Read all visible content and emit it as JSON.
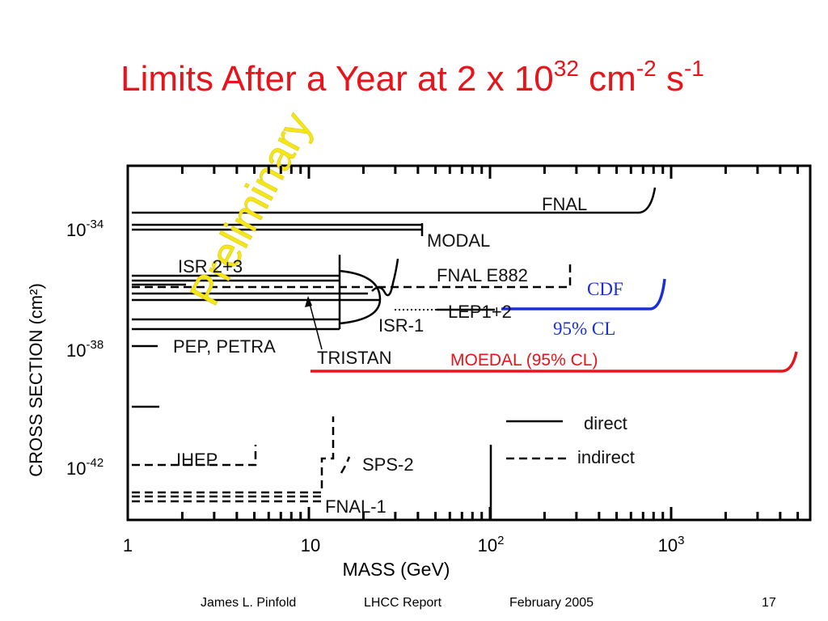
{
  "title": {
    "text": "Limits After a Year at 2 x 10",
    "exp1": "32",
    "unit1": " cm",
    "exp2": "-2",
    "unit2": " s",
    "exp3": "-1"
  },
  "plot": {
    "y_axis_label": "CROSS SECTION (cm²)",
    "x_axis_label": "MASS (GeV)",
    "x_ticks": [
      {
        "base": "1"
      },
      {
        "base": "10"
      },
      {
        "base": "10",
        "exp": "2"
      },
      {
        "base": "10",
        "exp": "3"
      }
    ],
    "y_ticks": [
      {
        "base": "10",
        "exp": "-34"
      },
      {
        "base": "10",
        "exp": "-38"
      },
      {
        "base": "10",
        "exp": "-42"
      }
    ],
    "labels": {
      "fnal": "FNAL",
      "modal": "MODAL",
      "isr23": "ISR 2+3",
      "fnal_e882": "FNAL E882",
      "cdf": "CDF",
      "lep": "LEP1+2",
      "isr1": "ISR-1",
      "cl": "95% CL",
      "pep": "PEP, PETRA",
      "tristan": "TRISTAN",
      "moedal": "MOEDAL (95% CL)",
      "ihep": "IHEP",
      "sps2": "SPS-2",
      "fnal1": "FNAL-1"
    },
    "watermark": "Preliminary",
    "legend": {
      "direct": "direct",
      "indirect": "indirect"
    }
  },
  "footer": {
    "author": "James L. Pinfold",
    "report": "LHCC Report",
    "date": "February 2005",
    "page": "17"
  }
}
